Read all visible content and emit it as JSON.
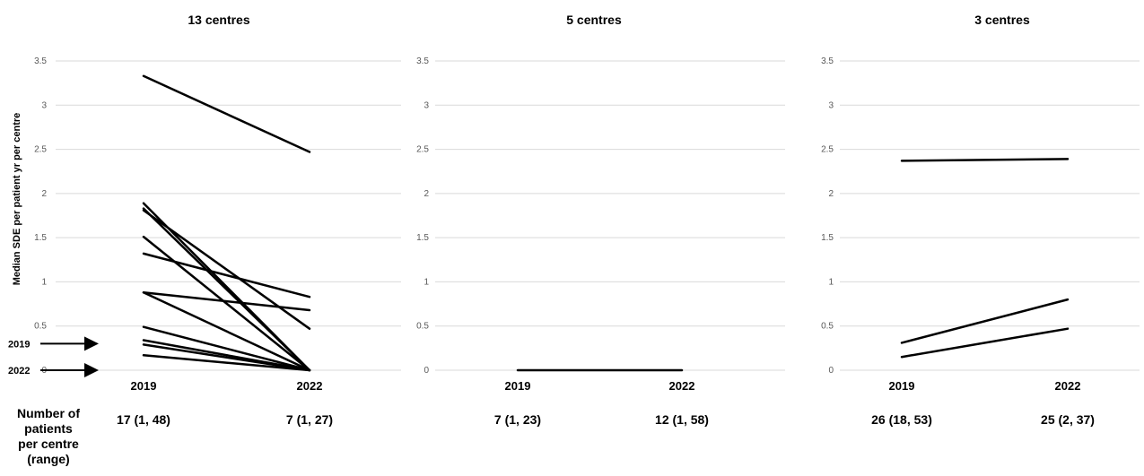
{
  "y_axis_label": "Median SDE per patient yr per centre",
  "row_label_lines": [
    "Number of",
    "patients",
    "per centre",
    "(range)"
  ],
  "markers": [
    {
      "label": "2019",
      "value": 0.3
    },
    {
      "label": "2022",
      "value": 0.0
    }
  ],
  "chart_data": [
    {
      "type": "line",
      "title": "13 centres",
      "categories": [
        "2019",
        "2022"
      ],
      "ylim": [
        0,
        3.5
      ],
      "yticks": [
        "0",
        "0.5",
        "1",
        "1.5",
        "2",
        "2.5",
        "3",
        "3.5"
      ],
      "grid": true,
      "patient_counts": [
        "17 (1, 48)",
        "7 (1, 27)"
      ],
      "series": [
        {
          "values": [
            3.33,
            2.47
          ]
        },
        {
          "values": [
            1.89,
            0.0
          ]
        },
        {
          "values": [
            1.83,
            0.0
          ]
        },
        {
          "values": [
            1.81,
            0.47
          ]
        },
        {
          "values": [
            1.51,
            0.0
          ]
        },
        {
          "values": [
            1.32,
            0.83
          ]
        },
        {
          "values": [
            0.88,
            0.68
          ]
        },
        {
          "values": [
            0.88,
            0.0
          ]
        },
        {
          "values": [
            0.49,
            0.0
          ]
        },
        {
          "values": [
            0.34,
            0.0
          ]
        },
        {
          "values": [
            0.29,
            0.0
          ]
        },
        {
          "values": [
            0.17,
            0.0
          ]
        }
      ]
    },
    {
      "type": "line",
      "title": "5 centres",
      "categories": [
        "2019",
        "2022"
      ],
      "ylim": [
        0,
        3.5
      ],
      "yticks": [
        "0",
        "0.5",
        "1",
        "1.5",
        "2",
        "2.5",
        "3",
        "3.5"
      ],
      "grid": true,
      "patient_counts": [
        "7 (1, 23)",
        "12 (1, 58)"
      ],
      "series": [
        {
          "values": [
            0.0,
            0.0
          ]
        }
      ]
    },
    {
      "type": "line",
      "title": "3 centres",
      "categories": [
        "2019",
        "2022"
      ],
      "ylim": [
        0,
        3.5
      ],
      "yticks": [
        "0",
        "0.5",
        "1",
        "1.5",
        "2",
        "2.5",
        "3",
        "3.5"
      ],
      "grid": true,
      "patient_counts": [
        "26 (18, 53)",
        "25 (2, 37)"
      ],
      "series": [
        {
          "values": [
            2.37,
            2.39
          ]
        },
        {
          "values": [
            0.31,
            0.8
          ]
        },
        {
          "values": [
            0.15,
            0.47
          ]
        }
      ]
    }
  ]
}
